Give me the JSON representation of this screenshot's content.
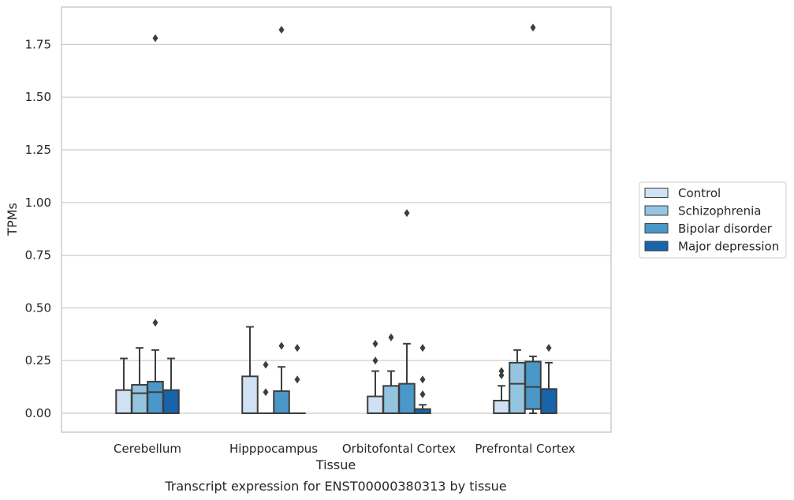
{
  "chart_data": {
    "type": "box",
    "title": "",
    "caption": "Transcript expression for ENST00000380313 by tissue",
    "xlabel": "Tissue",
    "ylabel": "TPMs",
    "ylim": [
      -0.09,
      1.93
    ],
    "yticks": [
      "0.00",
      "0.25",
      "0.50",
      "0.75",
      "1.00",
      "1.25",
      "1.50",
      "1.75"
    ],
    "grid": true,
    "legend_position": "right",
    "categories": [
      "Cerebellum",
      "Hipppocampus",
      "Orbitofontal Cortex",
      "Prefrontal Cortex"
    ],
    "series": [
      {
        "name": "Control",
        "color": "#cfe1f2",
        "boxes": [
          {
            "whislo": 0.0,
            "q1": 0.0,
            "med": 0.0,
            "q3": 0.11,
            "whishi": 0.26,
            "fliers": []
          },
          {
            "whislo": 0.0,
            "q1": 0.0,
            "med": 0.0,
            "q3": 0.175,
            "whishi": 0.41,
            "fliers": []
          },
          {
            "whislo": 0.0,
            "q1": 0.0,
            "med": 0.0,
            "q3": 0.08,
            "whishi": 0.2,
            "fliers": [
              0.25,
              0.33
            ]
          },
          {
            "whislo": 0.0,
            "q1": 0.0,
            "med": 0.0,
            "q3": 0.06,
            "whishi": 0.13,
            "fliers": [
              0.18,
              0.2
            ]
          }
        ]
      },
      {
        "name": "Schizophrenia",
        "color": "#94c4df",
        "boxes": [
          {
            "whislo": 0.0,
            "q1": 0.0,
            "med": 0.095,
            "q3": 0.135,
            "whishi": 0.31,
            "fliers": []
          },
          {
            "whislo": 0.0,
            "q1": 0.0,
            "med": 0.0,
            "q3": 0.0,
            "whishi": 0.0,
            "fliers": [
              0.1,
              0.23
            ]
          },
          {
            "whislo": 0.0,
            "q1": 0.0,
            "med": 0.0,
            "q3": 0.13,
            "whishi": 0.2,
            "fliers": [
              0.36
            ]
          },
          {
            "whislo": 0.0,
            "q1": 0.0,
            "med": 0.14,
            "q3": 0.24,
            "whishi": 0.3,
            "fliers": []
          }
        ]
      },
      {
        "name": "Bipolar disorder",
        "color": "#4a98c9",
        "boxes": [
          {
            "whislo": 0.0,
            "q1": 0.0,
            "med": 0.1,
            "q3": 0.15,
            "whishi": 0.3,
            "fliers": [
              0.43,
              1.78
            ]
          },
          {
            "whislo": 0.0,
            "q1": 0.0,
            "med": 0.0,
            "q3": 0.105,
            "whishi": 0.22,
            "fliers": [
              0.32,
              1.82
            ]
          },
          {
            "whislo": 0.0,
            "q1": 0.0,
            "med": 0.0,
            "q3": 0.14,
            "whishi": 0.33,
            "fliers": [
              0.95
            ]
          },
          {
            "whislo": 0.0,
            "q1": 0.02,
            "med": 0.125,
            "q3": 0.245,
            "whishi": 0.27,
            "fliers": [
              1.83
            ]
          }
        ]
      },
      {
        "name": "Major depression",
        "color": "#1764ab",
        "boxes": [
          {
            "whislo": 0.0,
            "q1": 0.0,
            "med": 0.0,
            "q3": 0.11,
            "whishi": 0.26,
            "fliers": []
          },
          {
            "whislo": 0.0,
            "q1": 0.0,
            "med": 0.0,
            "q3": 0.0,
            "whishi": 0.0,
            "fliers": [
              0.16,
              0.31
            ]
          },
          {
            "whislo": 0.0,
            "q1": 0.0,
            "med": 0.0,
            "q3": 0.02,
            "whishi": 0.04,
            "fliers": [
              0.09,
              0.16,
              0.31
            ]
          },
          {
            "whislo": 0.0,
            "q1": 0.0,
            "med": 0.0,
            "q3": 0.115,
            "whishi": 0.24,
            "fliers": [
              0.31
            ]
          }
        ]
      }
    ]
  }
}
